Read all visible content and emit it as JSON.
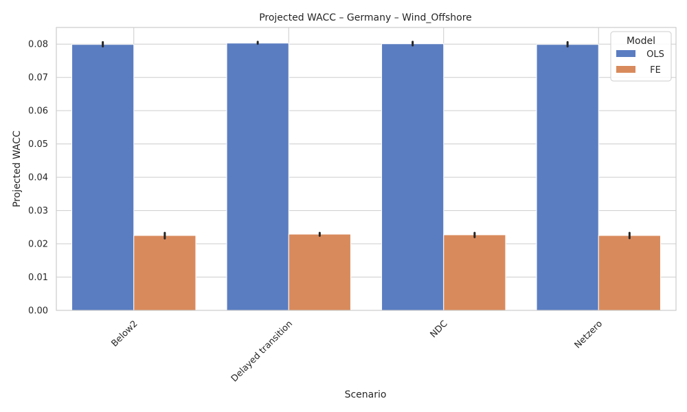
{
  "chart_data": {
    "type": "bar",
    "title": "Projected WACC – Germany – Wind_Offshore",
    "xlabel": "Scenario",
    "ylabel": "Projected WACC",
    "categories": [
      "Below2",
      "Delayed transition",
      "NDC",
      "Netzero"
    ],
    "series": [
      {
        "name": "OLS",
        "color": "#5a7dc1",
        "values": [
          0.0799,
          0.0803,
          0.0801,
          0.0799
        ],
        "err_low": [
          0.0793,
          0.0801,
          0.0796,
          0.0793
        ],
        "err_high": [
          0.0806,
          0.0807,
          0.0807,
          0.0806
        ]
      },
      {
        "name": "FE",
        "color": "#d98a5c",
        "values": [
          0.0225,
          0.0229,
          0.0227,
          0.0225
        ],
        "err_low": [
          0.0216,
          0.0224,
          0.022,
          0.0217
        ],
        "err_high": [
          0.0233,
          0.0233,
          0.0233,
          0.0233
        ]
      }
    ],
    "ylim": [
      0,
      0.085
    ],
    "yticks": [
      "0.00",
      "0.01",
      "0.02",
      "0.03",
      "0.04",
      "0.05",
      "0.06",
      "0.07",
      "0.08"
    ],
    "grid": true,
    "legend": {
      "title": "Model",
      "placement": "top-right"
    }
  }
}
